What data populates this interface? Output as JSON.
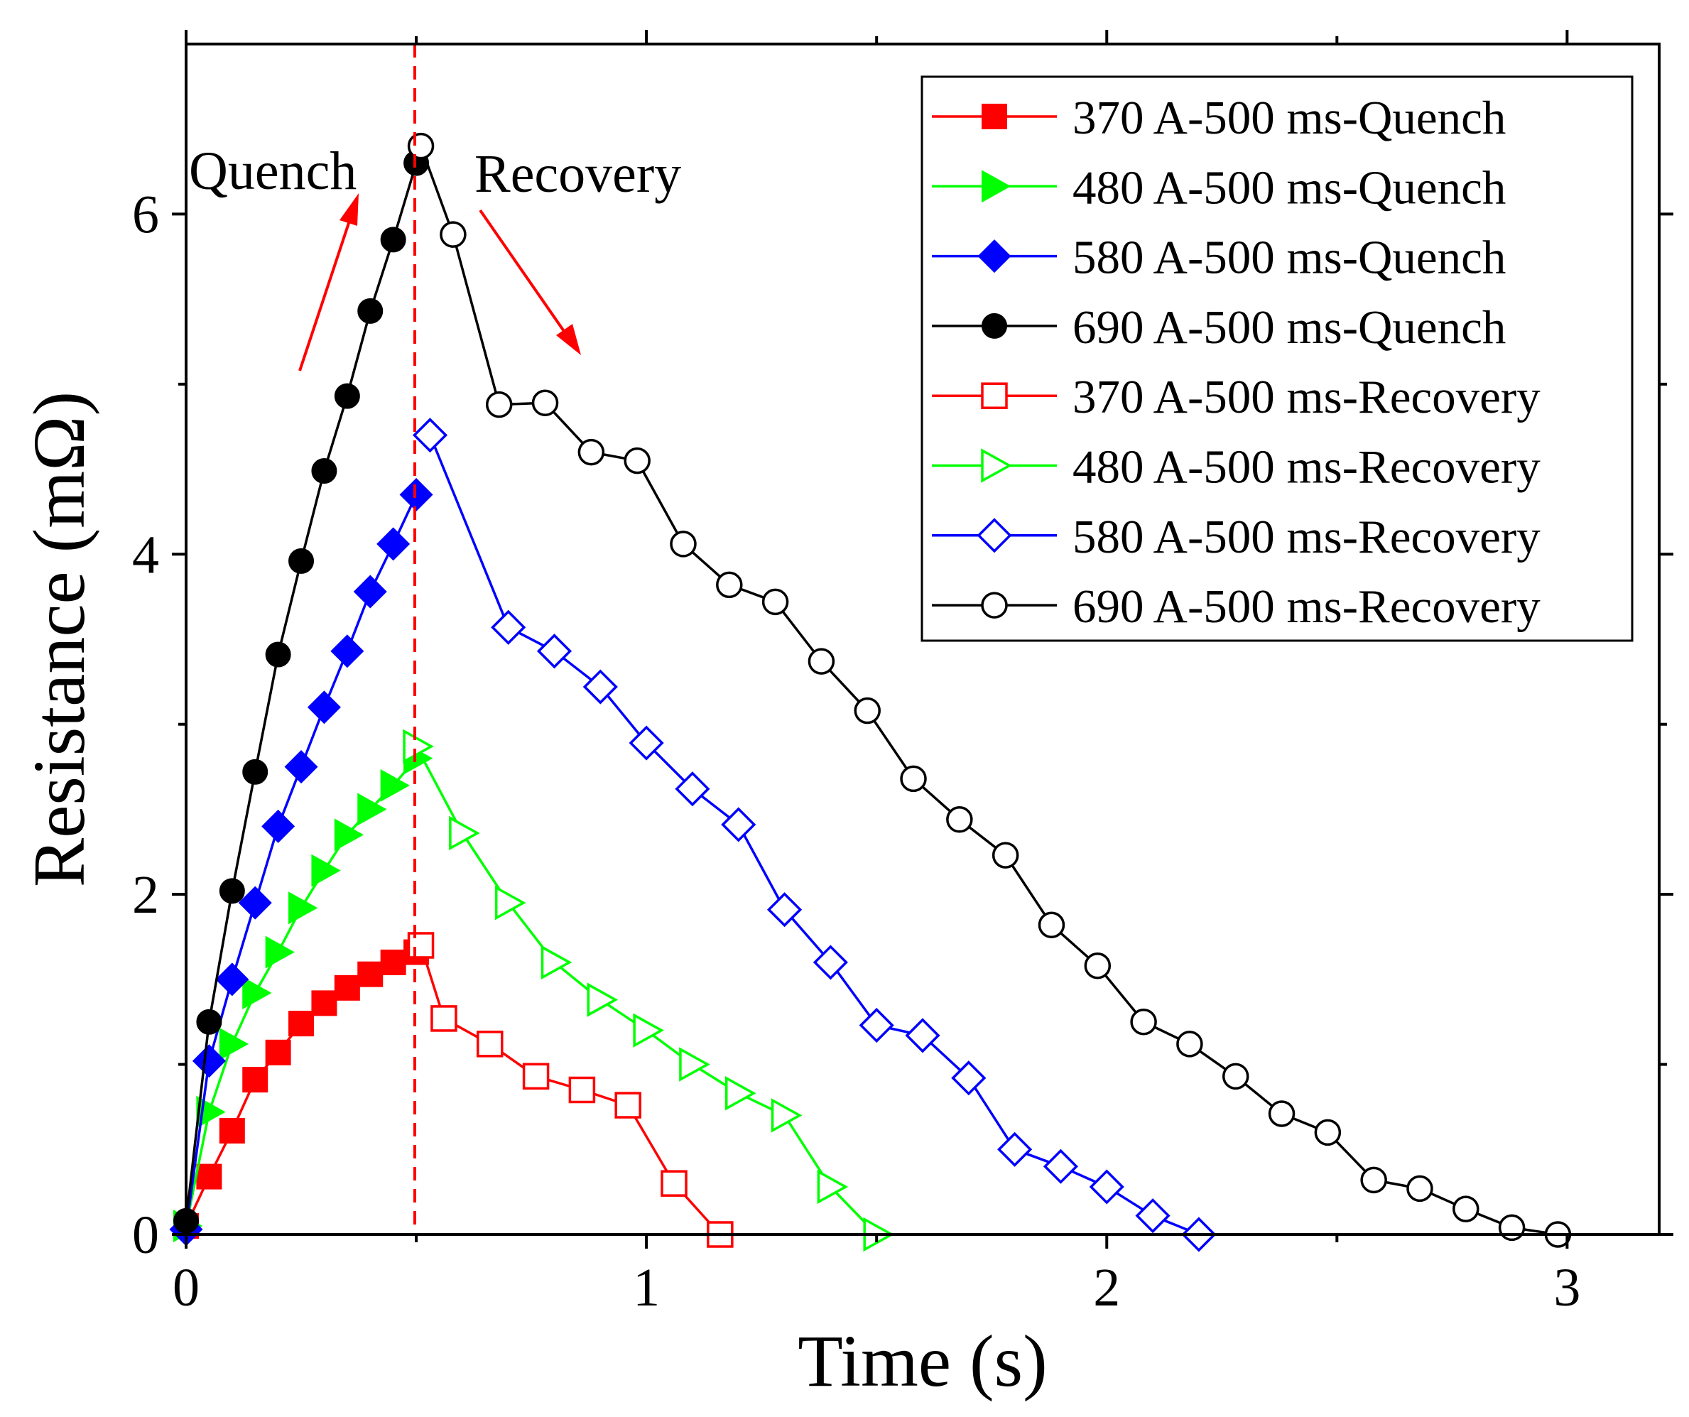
{
  "chart_data": {
    "type": "line",
    "title": "",
    "xlabel": "Time (s)",
    "ylabel": "Resistance (mΩ)",
    "xlim": [
      0,
      3.2
    ],
    "ylim": [
      0,
      7.0
    ],
    "x_ticks": [
      "0",
      "1",
      "2",
      "3"
    ],
    "y_ticks": [
      "0",
      "2",
      "4",
      "6"
    ],
    "grid": false,
    "legend_position": "top-right",
    "annotations": [
      {
        "text": "Quench",
        "x": 0.0,
        "y": 6.25
      },
      {
        "text": "Recovery",
        "x": 0.63,
        "y": 6.25
      }
    ],
    "series": [
      {
        "name": "370 A-500 ms-Quench",
        "color": "#ff0000",
        "marker": "square",
        "filled": true,
        "x": [
          0.0,
          0.05,
          0.1,
          0.15,
          0.2,
          0.25,
          0.3,
          0.35,
          0.4,
          0.45,
          0.5
        ],
        "y": [
          0.05,
          0.34,
          0.61,
          0.91,
          1.07,
          1.24,
          1.36,
          1.45,
          1.53,
          1.6,
          1.66
        ]
      },
      {
        "name": "480 A-500 ms-Quench",
        "color": "#00ff00",
        "marker": "triangle-right",
        "filled": true,
        "x": [
          0.0,
          0.05,
          0.1,
          0.15,
          0.2,
          0.25,
          0.3,
          0.35,
          0.4,
          0.45,
          0.5
        ],
        "y": [
          0.05,
          0.72,
          1.12,
          1.42,
          1.66,
          1.92,
          2.14,
          2.35,
          2.5,
          2.64,
          2.8
        ]
      },
      {
        "name": "580 A-500 ms-Quench",
        "color": "#0000ff",
        "marker": "diamond",
        "filled": true,
        "x": [
          0.0,
          0.05,
          0.1,
          0.15,
          0.2,
          0.25,
          0.3,
          0.35,
          0.4,
          0.45,
          0.5
        ],
        "y": [
          0.03,
          1.02,
          1.5,
          1.95,
          2.4,
          2.75,
          3.1,
          3.43,
          3.78,
          4.06,
          4.35
        ]
      },
      {
        "name": "690 A-500 ms-Quench",
        "color": "#000000",
        "marker": "circle",
        "filled": true,
        "x": [
          0.0,
          0.05,
          0.1,
          0.15,
          0.2,
          0.25,
          0.3,
          0.35,
          0.4,
          0.45,
          0.5
        ],
        "y": [
          0.08,
          1.25,
          2.02,
          2.72,
          3.41,
          3.96,
          4.49,
          4.93,
          5.43,
          5.85,
          6.3
        ]
      },
      {
        "name": "370 A-500 ms-Recovery",
        "color": "#ff0000",
        "marker": "square",
        "filled": false,
        "x": [
          0.51,
          0.56,
          0.66,
          0.76,
          0.86,
          0.96,
          1.06,
          1.16
        ],
        "y": [
          1.7,
          1.27,
          1.12,
          0.93,
          0.85,
          0.76,
          0.3,
          0.0
        ]
      },
      {
        "name": "480 A-500 ms-Recovery",
        "color": "#00ff00",
        "marker": "triangle-right",
        "filled": false,
        "x": [
          0.5,
          0.6,
          0.7,
          0.8,
          0.9,
          1.0,
          1.1,
          1.2,
          1.3,
          1.4,
          1.5
        ],
        "y": [
          2.87,
          2.36,
          1.95,
          1.6,
          1.38,
          1.2,
          1.0,
          0.83,
          0.7,
          0.28,
          0.0
        ]
      },
      {
        "name": "580 A-500 ms-Recovery",
        "color": "#0000ff",
        "marker": "diamond",
        "filled": false,
        "x": [
          0.53,
          0.7,
          0.8,
          0.9,
          1.0,
          1.1,
          1.2,
          1.3,
          1.4,
          1.5,
          1.6,
          1.7,
          1.8,
          1.9,
          2.0,
          2.1,
          2.2
        ],
        "y": [
          4.7,
          3.57,
          3.43,
          3.22,
          2.89,
          2.62,
          2.41,
          1.91,
          1.6,
          1.23,
          1.17,
          0.92,
          0.5,
          0.4,
          0.28,
          0.11,
          0.0
        ]
      },
      {
        "name": "690 A-500 ms-Recovery",
        "color": "#000000",
        "marker": "circle",
        "filled": false,
        "x": [
          0.51,
          0.58,
          0.68,
          0.78,
          0.88,
          0.98,
          1.08,
          1.18,
          1.28,
          1.38,
          1.48,
          1.58,
          1.68,
          1.78,
          1.88,
          1.98,
          2.08,
          2.18,
          2.28,
          2.38,
          2.48,
          2.58,
          2.68,
          2.78,
          2.88,
          2.98
        ],
        "y": [
          6.4,
          5.88,
          4.88,
          4.89,
          4.6,
          4.55,
          4.06,
          3.82,
          3.72,
          3.37,
          3.08,
          2.68,
          2.44,
          2.23,
          1.82,
          1.58,
          1.25,
          1.12,
          0.93,
          0.71,
          0.6,
          0.32,
          0.27,
          0.15,
          0.04,
          0.0
        ]
      }
    ]
  }
}
